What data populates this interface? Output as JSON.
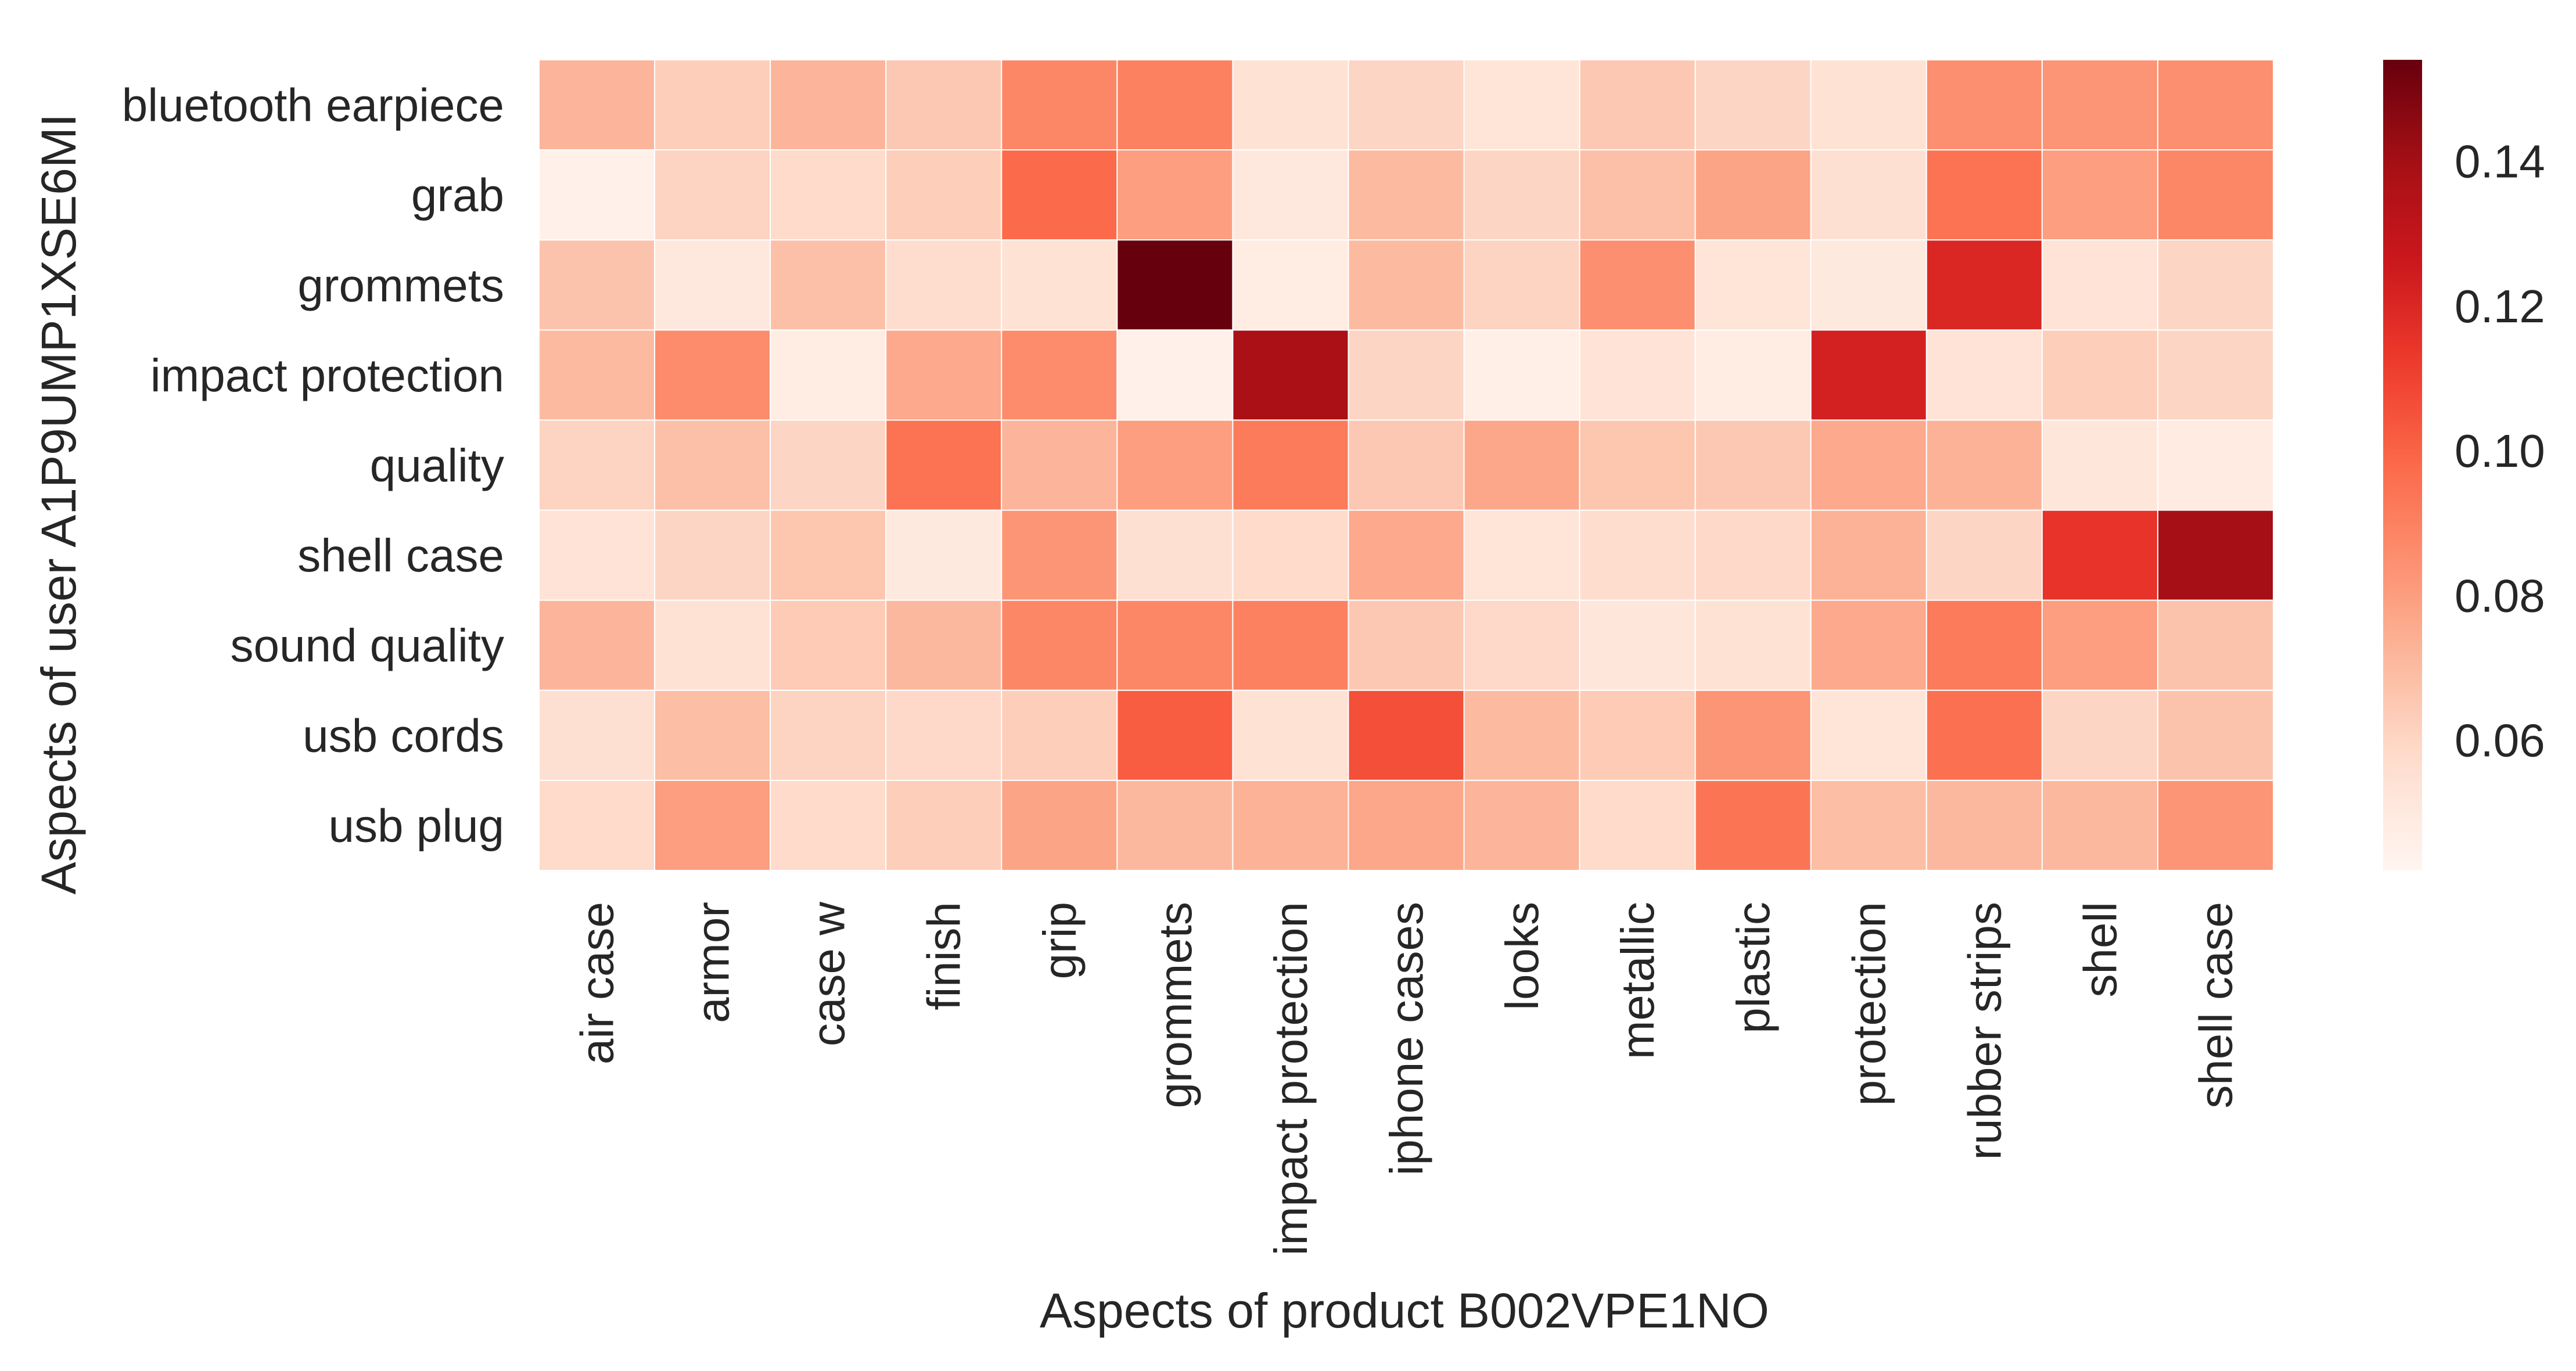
{
  "chart_data": {
    "type": "heatmap",
    "title": "",
    "xlabel": "Aspects of product B002VPE1NO",
    "ylabel": "Aspects of user A1P9UMP1XSE6MI",
    "x_categories": [
      "air case",
      "armor",
      "case w",
      "finish",
      "grip",
      "grommets",
      "impact protection",
      "iphone cases",
      "looks",
      "metallic",
      "plastic",
      "protection",
      "rubber strips",
      "shell",
      "shell case"
    ],
    "y_categories": [
      "bluetooth earpiece",
      "grab",
      "grommets",
      "impact protection",
      "quality",
      "shell case",
      "sound quality",
      "usb cords",
      "usb plug"
    ],
    "values": [
      [
        0.072,
        0.063,
        0.072,
        0.065,
        0.088,
        0.09,
        0.055,
        0.06,
        0.053,
        0.065,
        0.06,
        0.055,
        0.085,
        0.083,
        0.085
      ],
      [
        0.045,
        0.061,
        0.058,
        0.063,
        0.098,
        0.08,
        0.051,
        0.07,
        0.06,
        0.068,
        0.078,
        0.056,
        0.095,
        0.08,
        0.088
      ],
      [
        0.067,
        0.051,
        0.068,
        0.057,
        0.055,
        0.155,
        0.048,
        0.07,
        0.061,
        0.085,
        0.053,
        0.05,
        0.12,
        0.054,
        0.06
      ],
      [
        0.07,
        0.086,
        0.048,
        0.076,
        0.086,
        0.045,
        0.138,
        0.06,
        0.046,
        0.054,
        0.048,
        0.123,
        0.054,
        0.063,
        0.06
      ],
      [
        0.061,
        0.068,
        0.06,
        0.095,
        0.072,
        0.08,
        0.092,
        0.065,
        0.077,
        0.066,
        0.065,
        0.076,
        0.073,
        0.052,
        0.049
      ],
      [
        0.054,
        0.06,
        0.066,
        0.05,
        0.083,
        0.056,
        0.058,
        0.076,
        0.053,
        0.057,
        0.059,
        0.073,
        0.06,
        0.115,
        0.14
      ],
      [
        0.072,
        0.055,
        0.064,
        0.071,
        0.088,
        0.088,
        0.09,
        0.065,
        0.059,
        0.052,
        0.055,
        0.076,
        0.092,
        0.08,
        0.067
      ],
      [
        0.056,
        0.069,
        0.061,
        0.059,
        0.063,
        0.102,
        0.055,
        0.106,
        0.07,
        0.064,
        0.083,
        0.053,
        0.096,
        0.06,
        0.067
      ],
      [
        0.058,
        0.08,
        0.058,
        0.063,
        0.078,
        0.071,
        0.073,
        0.077,
        0.072,
        0.058,
        0.094,
        0.069,
        0.071,
        0.071,
        0.083
      ]
    ],
    "colorbar": {
      "min": 0.042,
      "max": 0.154,
      "ticks": [
        0.06,
        0.08,
        0.1,
        0.12,
        0.14
      ],
      "tick_labels": [
        "0.06",
        "0.08",
        "0.10",
        "0.12",
        "0.14"
      ],
      "colormap": "Reds"
    },
    "grid": false,
    "legend": "colorbar-right"
  }
}
